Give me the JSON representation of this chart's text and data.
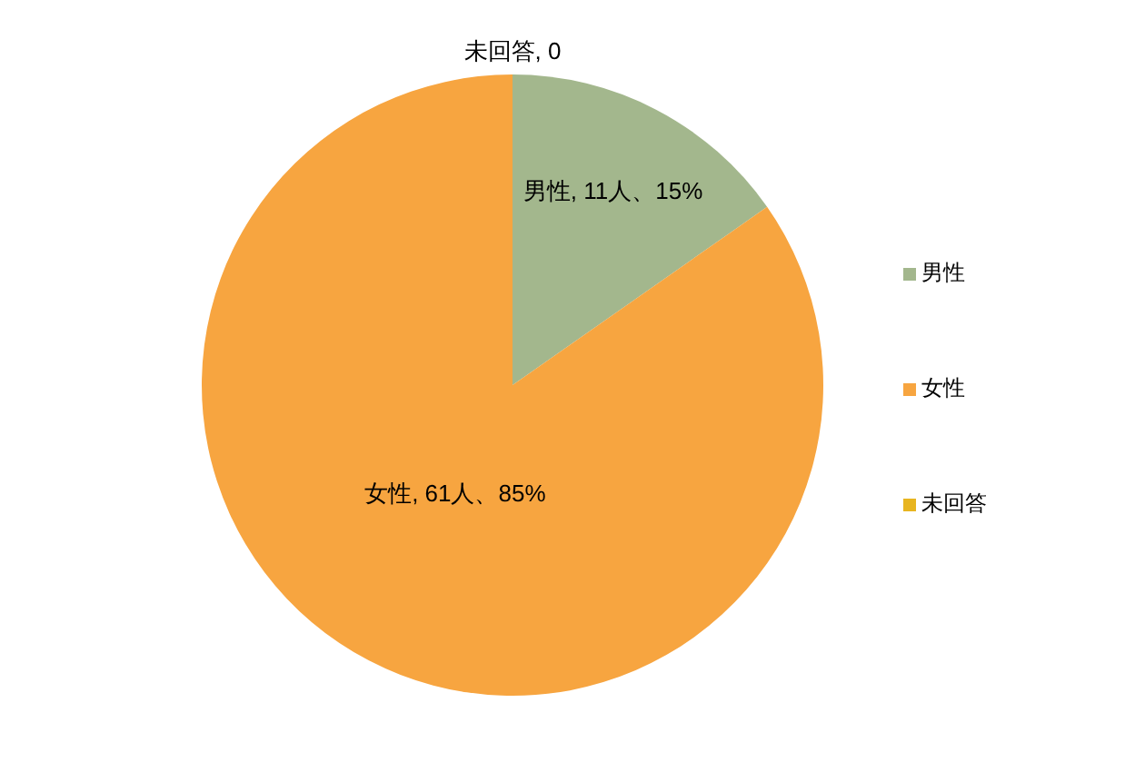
{
  "chart_data": {
    "type": "pie",
    "categories": [
      "男性",
      "女性",
      "未回答"
    ],
    "values": [
      11,
      61,
      0
    ],
    "colors": [
      "#a3b78d",
      "#f7a540",
      "#e8b520"
    ],
    "value_labels": [
      "男性, 11人、15%",
      "女性, 61人、85%",
      "未回答, 0"
    ],
    "legend": "right"
  }
}
